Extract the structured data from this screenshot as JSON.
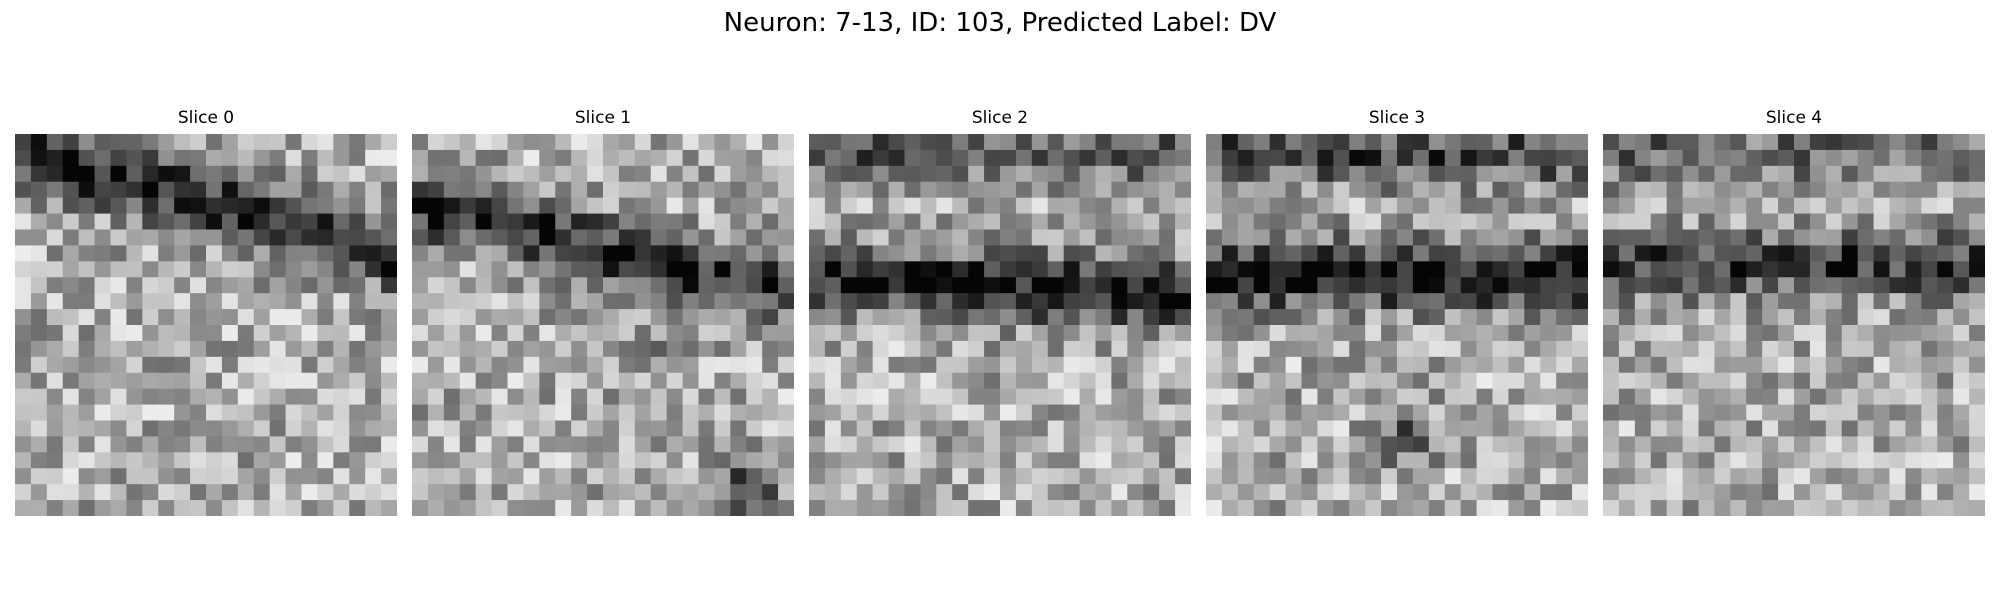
{
  "figure": {
    "title": "Neuron: 7-13, ID: 103, Predicted Label: DV",
    "colormap": "grayscale"
  },
  "panels": [
    {
      "title": "Slice 0",
      "bands": [
        {
          "center": 0.18,
          "slope": 0.55,
          "strength": 0.95
        }
      ],
      "blobs": []
    },
    {
      "title": "Slice 1",
      "bands": [
        {
          "center": 0.3,
          "slope": 0.45,
          "strength": 0.85
        }
      ],
      "blobs": [
        {
          "u": 0.88,
          "v": 0.92,
          "strength": 0.9
        },
        {
          "u": 0.62,
          "v": 0.55,
          "strength": 0.35
        }
      ]
    },
    {
      "title": "Slice 2",
      "bands": [
        {
          "center": 0.4,
          "slope": 0.12,
          "strength": 0.95
        },
        {
          "center": 0.05,
          "slope": 0.0,
          "strength": 0.55
        }
      ],
      "blobs": []
    },
    {
      "title": "Slice 3",
      "bands": [
        {
          "center": 0.37,
          "slope": 0.0,
          "strength": 1.0
        },
        {
          "center": 0.05,
          "slope": 0.0,
          "strength": 0.65
        }
      ],
      "blobs": [
        {
          "u": 0.52,
          "v": 0.78,
          "strength": 0.55
        }
      ]
    },
    {
      "title": "Slice 4",
      "bands": [
        {
          "center": 0.34,
          "slope": 0.0,
          "strength": 0.75
        },
        {
          "center": 0.05,
          "slope": 0.0,
          "strength": 0.45
        }
      ],
      "blobs": []
    }
  ]
}
